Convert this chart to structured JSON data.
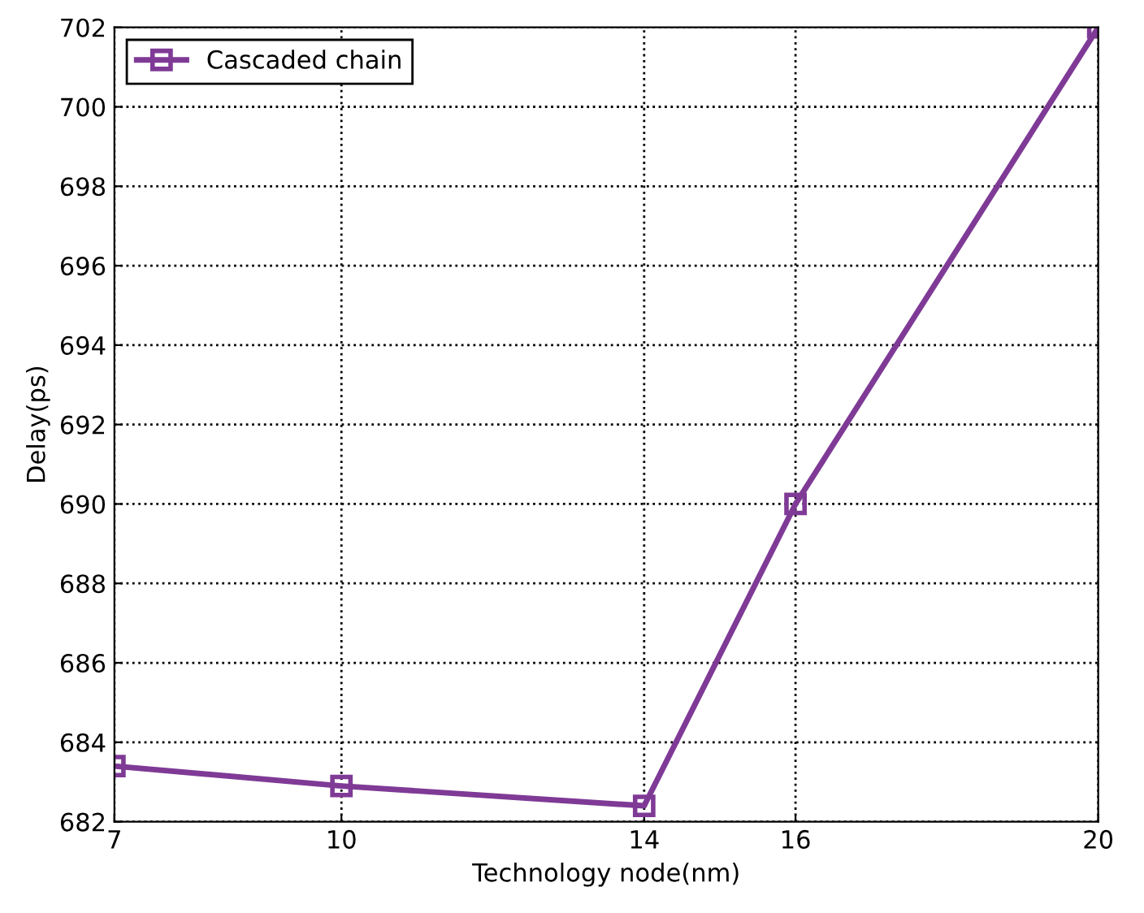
{
  "chart_data": {
    "type": "line",
    "xlabel": "Technology node(nm)",
    "ylabel": "Delay(ps)",
    "x": [
      7,
      10,
      14,
      16,
      20
    ],
    "series": [
      {
        "name": "Cascaded chain",
        "color": "#7f3a96",
        "values": [
          683.4,
          682.9,
          682.4,
          690,
          702
        ]
      }
    ],
    "xlim": [
      7,
      20
    ],
    "xticks": [
      7,
      10,
      14,
      16,
      20
    ],
    "ylim": [
      682,
      702
    ],
    "yticks": [
      682,
      684,
      686,
      688,
      690,
      692,
      694,
      696,
      698,
      700,
      702
    ],
    "grid": true,
    "legend": "top left",
    "marker": "square",
    "line_style": "solid"
  }
}
